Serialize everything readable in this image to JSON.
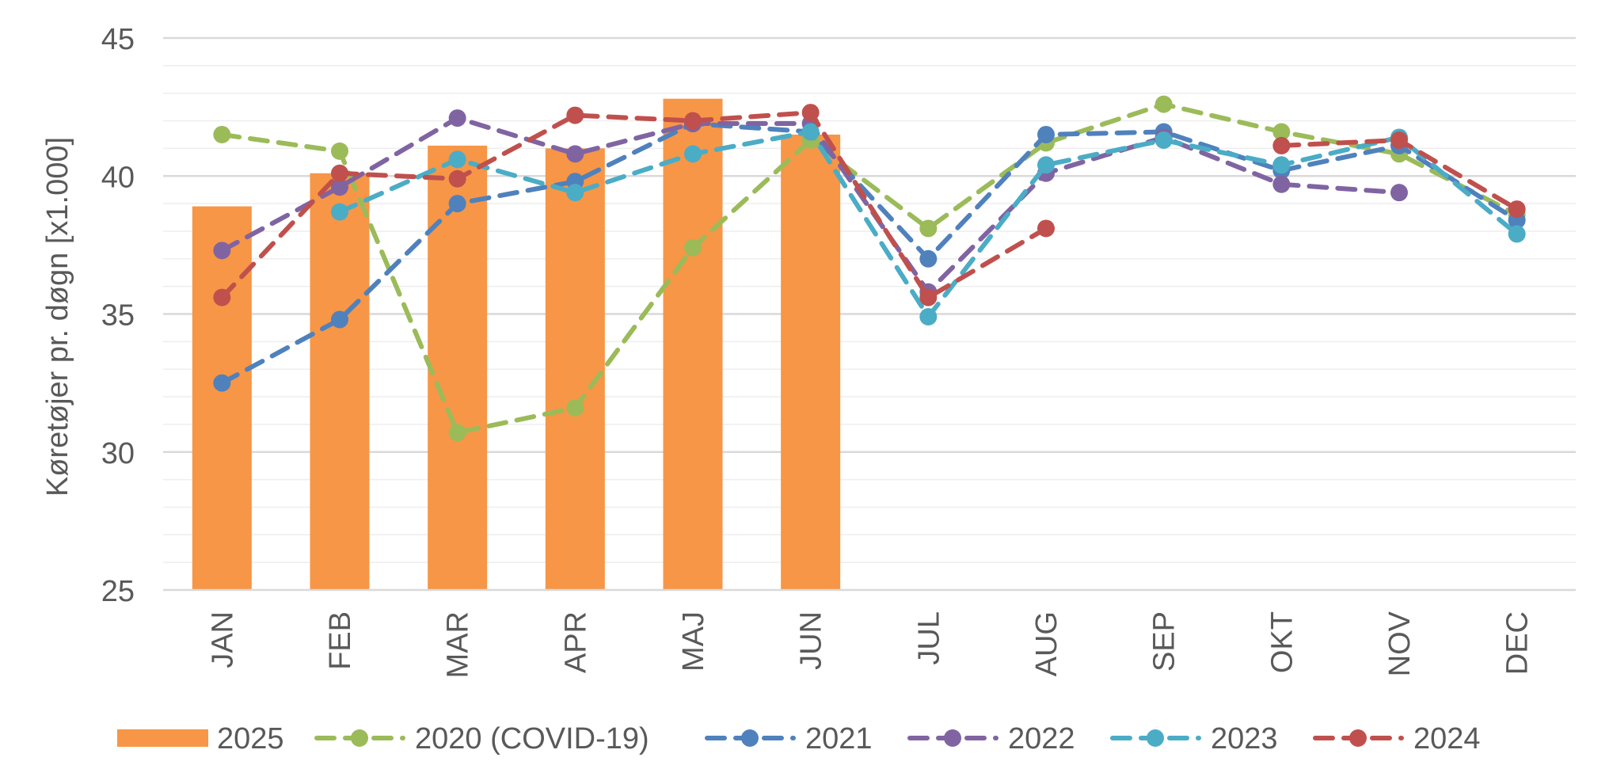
{
  "chart_data": {
    "type": "bar",
    "title": "",
    "xlabel": "",
    "ylabel": "Køretøjer pr. døgn [x1.000]",
    "ylim": [
      25,
      45
    ],
    "yticks": [
      "25",
      "30",
      "35",
      "40",
      "45"
    ],
    "grid": true,
    "legend_position": "bottom",
    "categories": [
      "JAN",
      "FEB",
      "MAR",
      "APR",
      "MAJ",
      "JUN",
      "JUL",
      "AUG",
      "SEP",
      "OKT",
      "NOV",
      "DEC"
    ],
    "bars": {
      "name": "2025",
      "color": "#F79646",
      "values": [
        38.9,
        40.1,
        41.1,
        41.0,
        42.8,
        41.5,
        null,
        null,
        null,
        null,
        null,
        null
      ]
    },
    "series": [
      {
        "name": "2020 (COVID-19)",
        "color": "#9BBB59",
        "style": "dashed-marker",
        "values": [
          41.5,
          40.9,
          30.7,
          31.6,
          37.4,
          41.3,
          38.1,
          41.2,
          42.6,
          41.6,
          40.8,
          38.6
        ]
      },
      {
        "name": "2021",
        "color": "#4F81BD",
        "style": "dashed-marker",
        "values": [
          32.5,
          34.8,
          39.0,
          39.8,
          41.9,
          41.6,
          37.0,
          41.5,
          41.6,
          40.2,
          41.1,
          38.4
        ]
      },
      {
        "name": "2022",
        "color": "#8064A2",
        "style": "dashed-marker",
        "values": [
          37.3,
          39.6,
          42.1,
          40.8,
          41.9,
          41.9,
          35.8,
          40.1,
          41.4,
          39.7,
          39.4,
          null
        ]
      },
      {
        "name": "2023",
        "color": "#4BACC6",
        "style": "dashed-marker",
        "values": [
          null,
          38.7,
          40.6,
          39.4,
          40.8,
          41.6,
          34.9,
          40.4,
          41.3,
          40.4,
          41.4,
          37.9
        ]
      },
      {
        "name": "2024",
        "color": "#C0504D",
        "style": "dashed-marker",
        "values": [
          35.6,
          40.1,
          39.9,
          42.2,
          42.0,
          42.3,
          35.6,
          38.1,
          null,
          41.1,
          41.3,
          38.8
        ]
      }
    ]
  }
}
